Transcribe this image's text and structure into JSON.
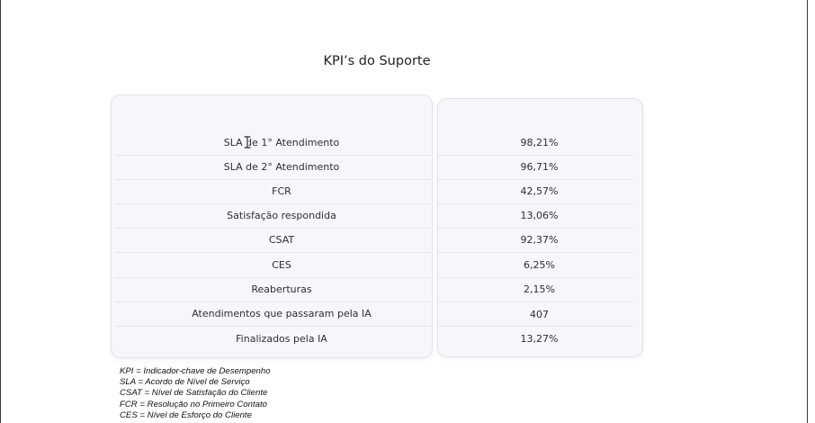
{
  "title": "KPI’s do Suporte",
  "kpis": [
    {
      "label": "SLA de 1° Atendimento",
      "value": "98,21%"
    },
    {
      "label": "SLA de 2° Atendimento",
      "value": "96,71%"
    },
    {
      "label": "FCR",
      "value": "42,57%"
    },
    {
      "label": "Satisfação respondida",
      "value": "13,06%"
    },
    {
      "label": "CSAT",
      "value": "92,37%"
    },
    {
      "label": "CES",
      "value": "6,25%"
    },
    {
      "label": "Reaberturas",
      "value": "2,15%"
    },
    {
      "label": "Atendimentos que passaram pela IA",
      "value": "407"
    },
    {
      "label": "Finalizados pela IA",
      "value": "13,27%"
    }
  ],
  "footnotes": [
    "KPI = Indicador-chave de Desempenho",
    "SLA = Acordo de Nível de Serviço",
    "CSAT = Nível de Satisfação do Cliente",
    "FCR = Resolução no Primeiro Contato",
    "CES = Nível de Esforço do Cliente"
  ],
  "cursor": "text-cursor-icon"
}
